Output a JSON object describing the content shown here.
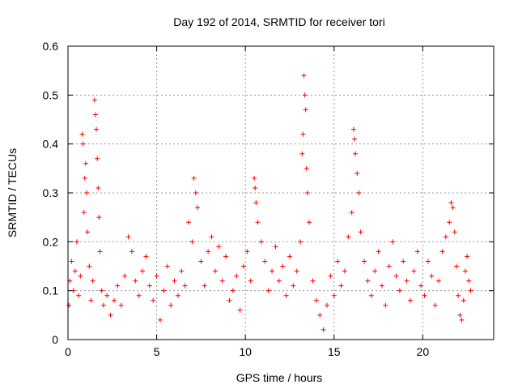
{
  "chart_data": {
    "type": "scatter",
    "title": "Day 192 of 2014, SRMTID for receiver tori",
    "xlabel": "GPS time / hours",
    "ylabel": "SRMTID / TECUs",
    "xlim": [
      0,
      24
    ],
    "ylim": [
      0,
      0.6
    ],
    "xticks": [
      "0",
      "5",
      "10",
      "15",
      "20"
    ],
    "yticks": [
      "0",
      "0.1",
      "0.2",
      "0.3",
      "0.4",
      "0.5",
      "0.6"
    ],
    "xtick_values": [
      0,
      5,
      10,
      15,
      20
    ],
    "ytick_values": [
      0,
      0.1,
      0.2,
      0.3,
      0.4,
      0.5,
      0.6
    ],
    "grid": true,
    "marker": "+",
    "series": [
      {
        "name": "SRMTID",
        "color": "#ff0000",
        "points": [
          [
            0.05,
            0.07
          ],
          [
            0.1,
            0.12
          ],
          [
            0.2,
            0.16
          ],
          [
            0.3,
            0.1
          ],
          [
            0.4,
            0.14
          ],
          [
            0.5,
            0.2
          ],
          [
            0.6,
            0.09
          ],
          [
            0.7,
            0.13
          ],
          [
            0.8,
            0.42
          ],
          [
            0.85,
            0.4
          ],
          [
            0.9,
            0.26
          ],
          [
            0.95,
            0.33
          ],
          [
            1.0,
            0.36
          ],
          [
            1.05,
            0.3
          ],
          [
            1.1,
            0.22
          ],
          [
            1.2,
            0.15
          ],
          [
            1.3,
            0.08
          ],
          [
            1.4,
            0.12
          ],
          [
            1.5,
            0.49
          ],
          [
            1.55,
            0.46
          ],
          [
            1.6,
            0.43
          ],
          [
            1.65,
            0.37
          ],
          [
            1.7,
            0.31
          ],
          [
            1.75,
            0.25
          ],
          [
            1.8,
            0.18
          ],
          [
            1.9,
            0.1
          ],
          [
            2.0,
            0.07
          ],
          [
            2.2,
            0.09
          ],
          [
            2.4,
            0.05
          ],
          [
            2.6,
            0.08
          ],
          [
            2.8,
            0.11
          ],
          [
            3.0,
            0.07
          ],
          [
            3.2,
            0.13
          ],
          [
            3.4,
            0.21
          ],
          [
            3.6,
            0.18
          ],
          [
            3.8,
            0.12
          ],
          [
            4.0,
            0.09
          ],
          [
            4.2,
            0.14
          ],
          [
            4.4,
            0.17
          ],
          [
            4.6,
            0.11
          ],
          [
            4.8,
            0.08
          ],
          [
            5.0,
            0.13
          ],
          [
            5.2,
            0.04
          ],
          [
            5.4,
            0.1
          ],
          [
            5.6,
            0.15
          ],
          [
            5.8,
            0.07
          ],
          [
            6.0,
            0.12
          ],
          [
            6.2,
            0.09
          ],
          [
            6.4,
            0.14
          ],
          [
            6.6,
            0.11
          ],
          [
            6.8,
            0.24
          ],
          [
            7.0,
            0.2
          ],
          [
            7.1,
            0.33
          ],
          [
            7.2,
            0.3
          ],
          [
            7.3,
            0.27
          ],
          [
            7.5,
            0.16
          ],
          [
            7.7,
            0.11
          ],
          [
            7.9,
            0.18
          ],
          [
            8.1,
            0.21
          ],
          [
            8.3,
            0.14
          ],
          [
            8.5,
            0.19
          ],
          [
            8.7,
            0.12
          ],
          [
            8.9,
            0.17
          ],
          [
            9.1,
            0.08
          ],
          [
            9.3,
            0.1
          ],
          [
            9.5,
            0.13
          ],
          [
            9.7,
            0.06
          ],
          [
            9.9,
            0.15
          ],
          [
            10.1,
            0.18
          ],
          [
            10.3,
            0.12
          ],
          [
            10.5,
            0.33
          ],
          [
            10.55,
            0.31
          ],
          [
            10.6,
            0.28
          ],
          [
            10.7,
            0.24
          ],
          [
            10.9,
            0.2
          ],
          [
            11.1,
            0.16
          ],
          [
            11.3,
            0.1
          ],
          [
            11.5,
            0.14
          ],
          [
            11.7,
            0.19
          ],
          [
            11.9,
            0.12
          ],
          [
            12.1,
            0.15
          ],
          [
            12.3,
            0.09
          ],
          [
            12.5,
            0.17
          ],
          [
            12.7,
            0.11
          ],
          [
            12.9,
            0.14
          ],
          [
            13.1,
            0.2
          ],
          [
            13.2,
            0.38
          ],
          [
            13.25,
            0.42
          ],
          [
            13.3,
            0.54
          ],
          [
            13.35,
            0.5
          ],
          [
            13.4,
            0.47
          ],
          [
            13.45,
            0.35
          ],
          [
            13.5,
            0.3
          ],
          [
            13.6,
            0.24
          ],
          [
            13.8,
            0.12
          ],
          [
            14.0,
            0.08
          ],
          [
            14.2,
            0.05
          ],
          [
            14.4,
            0.02
          ],
          [
            14.6,
            0.07
          ],
          [
            14.8,
            0.13
          ],
          [
            15.0,
            0.09
          ],
          [
            15.2,
            0.16
          ],
          [
            15.4,
            0.11
          ],
          [
            15.6,
            0.14
          ],
          [
            15.8,
            0.21
          ],
          [
            16.0,
            0.26
          ],
          [
            16.1,
            0.43
          ],
          [
            16.15,
            0.41
          ],
          [
            16.2,
            0.38
          ],
          [
            16.3,
            0.34
          ],
          [
            16.4,
            0.3
          ],
          [
            16.5,
            0.22
          ],
          [
            16.7,
            0.16
          ],
          [
            16.9,
            0.12
          ],
          [
            17.1,
            0.09
          ],
          [
            17.3,
            0.14
          ],
          [
            17.5,
            0.18
          ],
          [
            17.7,
            0.11
          ],
          [
            17.9,
            0.07
          ],
          [
            18.1,
            0.15
          ],
          [
            18.3,
            0.2
          ],
          [
            18.5,
            0.13
          ],
          [
            18.7,
            0.1
          ],
          [
            18.9,
            0.16
          ],
          [
            19.1,
            0.12
          ],
          [
            19.3,
            0.08
          ],
          [
            19.5,
            0.14
          ],
          [
            19.7,
            0.18
          ],
          [
            19.9,
            0.11
          ],
          [
            20.1,
            0.09
          ],
          [
            20.3,
            0.16
          ],
          [
            20.5,
            0.13
          ],
          [
            20.7,
            0.07
          ],
          [
            20.9,
            0.12
          ],
          [
            21.1,
            0.18
          ],
          [
            21.3,
            0.21
          ],
          [
            21.5,
            0.24
          ],
          [
            21.6,
            0.28
          ],
          [
            21.7,
            0.27
          ],
          [
            21.8,
            0.22
          ],
          [
            21.9,
            0.15
          ],
          [
            22.0,
            0.09
          ],
          [
            22.1,
            0.05
          ],
          [
            22.2,
            0.04
          ],
          [
            22.3,
            0.08
          ],
          [
            22.4,
            0.14
          ],
          [
            22.5,
            0.17
          ],
          [
            22.6,
            0.12
          ],
          [
            22.7,
            0.1
          ]
        ]
      }
    ]
  }
}
